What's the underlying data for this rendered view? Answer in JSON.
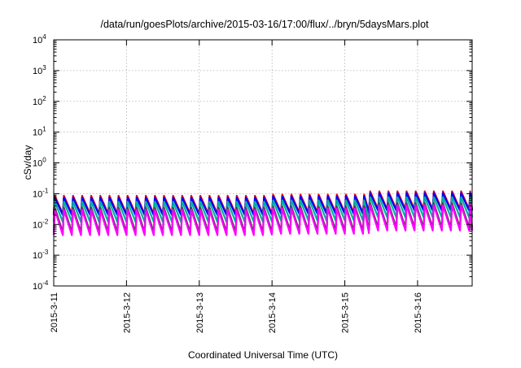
{
  "chart_data": {
    "type": "line",
    "title": "/data/run/goesPlots/archive/2015-03-16/17:00/flux/../bryn/5daysMars.plot",
    "xlabel": "Coordinated Universal Time (UTC)",
    "ylabel": "cSv/day",
    "yscale": "log",
    "ylim": [
      0.0001,
      10000
    ],
    "xlim": [
      "2015-03-11T00:00",
      "2015-03-16T18:00"
    ],
    "xticks": [
      "2015-3-11",
      "2015-3-12",
      "2015-3-13",
      "2015-3-14",
      "2015-3-15",
      "2015-3-16"
    ],
    "yticks": [
      {
        "base": "10",
        "exp": "-4"
      },
      {
        "base": "10",
        "exp": "-3"
      },
      {
        "base": "10",
        "exp": "-2"
      },
      {
        "base": "10",
        "exp": "-1"
      },
      {
        "base": "10",
        "exp": "0"
      },
      {
        "base": "10",
        "exp": "1"
      },
      {
        "base": "10",
        "exp": "2"
      },
      {
        "base": "10",
        "exp": "3"
      },
      {
        "base": "10",
        "exp": "4"
      }
    ],
    "grid": true,
    "legend": "none",
    "pattern": "sawtooth",
    "tooth_period_hours": 3,
    "segments": [
      {
        "start": "2015-03-11T00:00",
        "end": "2015-03-14T00:00",
        "peak_scale": 1.0
      },
      {
        "start": "2015-03-14T00:00",
        "end": "2015-03-15T08:00",
        "peak_scale": 1.1
      },
      {
        "start": "2015-03-15T08:00",
        "end": "2015-03-16T18:00",
        "peak_scale": 1.4
      }
    ],
    "series": [
      {
        "color": "#ff0000",
        "peak": 0.085,
        "trough": 0.022
      },
      {
        "color": "#0000ff",
        "peak": 0.075,
        "trough": 0.02
      },
      {
        "color": "#00b0a0",
        "peak": 0.055,
        "trough": 0.012
      },
      {
        "color": "#444444",
        "peak": 0.035,
        "trough": 0.0055
      },
      {
        "color": "#ff00ff",
        "peak": 0.03,
        "trough": 0.0045
      }
    ]
  }
}
